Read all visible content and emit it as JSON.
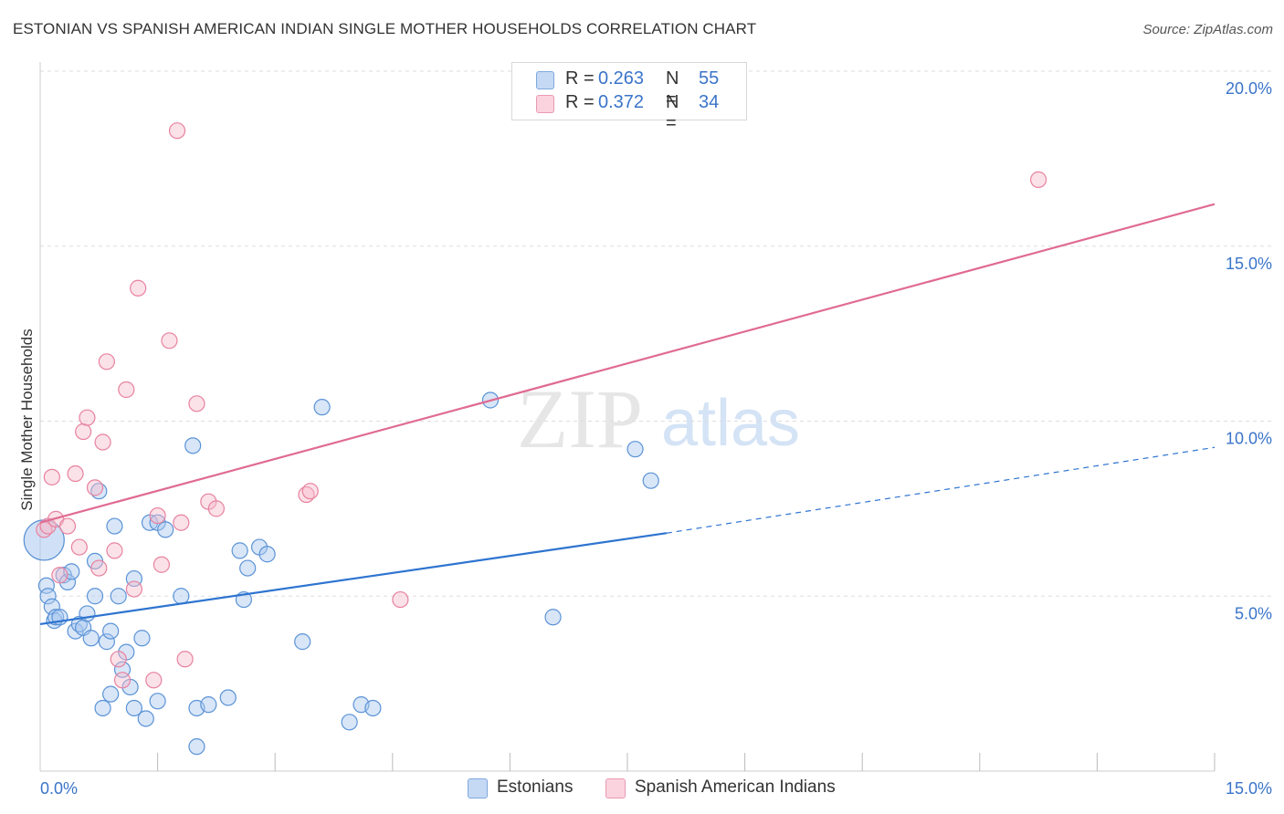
{
  "title": "ESTONIAN VS SPANISH AMERICAN INDIAN SINGLE MOTHER HOUSEHOLDS CORRELATION CHART",
  "source": "Source: ZipAtlas.com",
  "watermark": {
    "zip": "ZIP",
    "atlas": "atlas"
  },
  "legend_top": [
    {
      "r_label": "R =",
      "r_value": "0.263",
      "n_label": "N =",
      "n_value": "55",
      "color": "#a9c8f0"
    },
    {
      "r_label": "R =",
      "r_value": "0.372",
      "n_label": "N =",
      "n_value": "34",
      "color": "#f6bccd"
    }
  ],
  "legend_bottom": [
    {
      "label": "Estonians",
      "color": "#a9c8f0"
    },
    {
      "label": "Spanish American Indians",
      "color": "#f6bccd"
    }
  ],
  "chart_data": {
    "type": "scatter",
    "ylabel": "Single Mother Households",
    "xlim": [
      0,
      15
    ],
    "ylim": [
      0,
      20
    ],
    "x_tick_labels": [
      {
        "value": 0,
        "label": "0.0%"
      },
      {
        "value": 15,
        "label": "15.0%"
      }
    ],
    "y_tick_labels": [
      {
        "value": 5,
        "label": "5.0%"
      },
      {
        "value": 10,
        "label": "10.0%"
      },
      {
        "value": 15,
        "label": "15.0%"
      },
      {
        "value": 20,
        "label": "20.0%"
      }
    ],
    "x_minor_ticks": [
      1.5,
      3,
      4.5,
      6,
      7.5,
      9,
      10.5,
      12,
      13.5,
      15
    ],
    "grid": true,
    "series": [
      {
        "name": "Estonians",
        "color": "#a9c8f0",
        "stroke": "#5b93d6",
        "line_color": "#2e74d0",
        "trend": {
          "x0": 0,
          "y0": 4.2,
          "x1": 8.0,
          "y1": 6.8,
          "dashed_to_x": 15,
          "dashed_to_y": 9.25
        },
        "points": [
          [
            0.05,
            6.6
          ],
          [
            0.08,
            5.3
          ],
          [
            0.1,
            5.0
          ],
          [
            0.15,
            4.7
          ],
          [
            0.18,
            4.3
          ],
          [
            0.2,
            4.4
          ],
          [
            0.25,
            4.4
          ],
          [
            0.3,
            5.6
          ],
          [
            0.35,
            5.4
          ],
          [
            0.4,
            5.7
          ],
          [
            0.45,
            4.0
          ],
          [
            0.5,
            4.2
          ],
          [
            0.55,
            4.1
          ],
          [
            0.6,
            4.5
          ],
          [
            0.65,
            3.8
          ],
          [
            0.7,
            5.0
          ],
          [
            0.7,
            6.0
          ],
          [
            0.75,
            8.0
          ],
          [
            0.8,
            1.8
          ],
          [
            0.85,
            3.7
          ],
          [
            0.9,
            2.2
          ],
          [
            0.9,
            4.0
          ],
          [
            0.95,
            7.0
          ],
          [
            1.0,
            5.0
          ],
          [
            1.05,
            2.9
          ],
          [
            1.1,
            3.4
          ],
          [
            1.15,
            2.4
          ],
          [
            1.2,
            5.5
          ],
          [
            1.2,
            1.8
          ],
          [
            1.3,
            3.8
          ],
          [
            1.35,
            1.5
          ],
          [
            1.4,
            7.1
          ],
          [
            1.5,
            2.0
          ],
          [
            1.5,
            7.1
          ],
          [
            1.6,
            6.9
          ],
          [
            1.8,
            5.0
          ],
          [
            1.95,
            9.3
          ],
          [
            2.0,
            1.8
          ],
          [
            2.0,
            0.7
          ],
          [
            2.15,
            1.9
          ],
          [
            2.4,
            2.1
          ],
          [
            2.55,
            6.3
          ],
          [
            2.6,
            4.9
          ],
          [
            2.65,
            5.8
          ],
          [
            2.8,
            6.4
          ],
          [
            2.9,
            6.2
          ],
          [
            3.35,
            3.7
          ],
          [
            3.6,
            10.4
          ],
          [
            3.95,
            1.4
          ],
          [
            4.1,
            1.9
          ],
          [
            4.25,
            1.8
          ],
          [
            5.75,
            10.6
          ],
          [
            6.55,
            4.4
          ],
          [
            7.6,
            9.2
          ],
          [
            7.8,
            8.3
          ]
        ]
      },
      {
        "name": "Spanish American Indians",
        "color": "#f6bccd",
        "stroke": "#e7829f",
        "line_color": "#e06b92",
        "trend": {
          "x0": 0,
          "y0": 7.1,
          "x1": 15,
          "y1": 16.2
        },
        "points": [
          [
            0.05,
            6.9
          ],
          [
            0.1,
            7.0
          ],
          [
            0.15,
            8.4
          ],
          [
            0.2,
            7.2
          ],
          [
            0.25,
            5.6
          ],
          [
            0.35,
            7.0
          ],
          [
            0.45,
            8.5
          ],
          [
            0.5,
            6.4
          ],
          [
            0.55,
            9.7
          ],
          [
            0.6,
            10.1
          ],
          [
            0.7,
            8.1
          ],
          [
            0.75,
            5.8
          ],
          [
            0.8,
            9.4
          ],
          [
            0.85,
            11.7
          ],
          [
            0.95,
            6.3
          ],
          [
            1.0,
            3.2
          ],
          [
            1.05,
            2.6
          ],
          [
            1.1,
            10.9
          ],
          [
            1.2,
            5.2
          ],
          [
            1.25,
            13.8
          ],
          [
            1.45,
            2.6
          ],
          [
            1.5,
            7.3
          ],
          [
            1.55,
            5.9
          ],
          [
            1.65,
            12.3
          ],
          [
            1.75,
            18.3
          ],
          [
            1.8,
            7.1
          ],
          [
            1.85,
            3.2
          ],
          [
            2.0,
            10.5
          ],
          [
            2.15,
            7.7
          ],
          [
            2.25,
            7.5
          ],
          [
            3.4,
            7.9
          ],
          [
            3.45,
            8.0
          ],
          [
            4.6,
            4.9
          ],
          [
            12.75,
            16.9
          ]
        ]
      }
    ]
  }
}
